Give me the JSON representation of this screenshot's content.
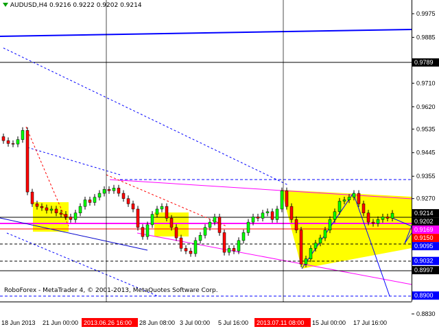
{
  "header": {
    "symbol": "AUDUSD,H4",
    "ohlc": "0.9216 0.9222 0.9202 0.9214"
  },
  "footer": {
    "copyright": "RoboForex - MetaTrader 4, © 2001-2013, MetaQuotes Software Corp."
  },
  "chart_data": {
    "type": "candlestick",
    "title": "AUDUSD,H4",
    "ylim": [
      0.883,
      0.9975
    ],
    "y_ticks": [
      "0.9975",
      "0.9885",
      "0.9710",
      "0.9620",
      "0.9535",
      "0.9445",
      "0.9355",
      "0.9270",
      "0.8830"
    ],
    "x_ticks": [
      "18 Jun 2013",
      "21 Jun 00:00",
      "28 Jun 08:00",
      "3 Jul 00:00",
      "5 Jul 16:00",
      "15 Jul 00:00",
      "17 Jul 16:00"
    ],
    "x_highlight_labels": [
      "2013.06.26 16:00",
      "2013.07.11 08:00"
    ],
    "price_labels": [
      {
        "value": "0.9789",
        "color": "#000000"
      },
      {
        "value": "0.9214",
        "color": "#000000"
      },
      {
        "value": "0.9202",
        "color": "#000000"
      },
      {
        "value": "0.9169",
        "color": "#ff00ff"
      },
      {
        "value": "0.9150",
        "color": "#ff0000"
      },
      {
        "value": "0.9095",
        "color": "#0000ff"
      },
      {
        "value": "0.9032",
        "color": "#0000ff"
      },
      {
        "value": "0.8997",
        "color": "#000000"
      },
      {
        "value": "0.8900",
        "color": "#0000ff"
      }
    ],
    "closes": [
      0.9491,
      0.948,
      0.9478,
      0.9495,
      0.953,
      0.9295,
      0.925,
      0.924,
      0.9235,
      0.9225,
      0.923,
      0.9215,
      0.921,
      0.92,
      0.919,
      0.9215,
      0.924,
      0.9265,
      0.9255,
      0.9275,
      0.929,
      0.9305,
      0.93,
      0.931,
      0.929,
      0.927,
      0.925,
      0.923,
      0.916,
      0.9125,
      0.917,
      0.921,
      0.923,
      0.924,
      0.9195,
      0.916,
      0.912,
      0.908,
      0.907,
      0.906,
      0.911,
      0.913,
      0.916,
      0.918,
      0.92,
      0.914,
      0.9065,
      0.908,
      0.907,
      0.911,
      0.914,
      0.918,
      0.92,
      0.9195,
      0.9215,
      0.922,
      0.919,
      0.923,
      0.93,
      0.924,
      0.919,
      0.915,
      0.902,
      0.904,
      0.908,
      0.91,
      0.912,
      0.915,
      0.919,
      0.922,
      0.926,
      0.9265,
      0.9275,
      0.929,
      0.925,
      0.9215,
      0.918,
      0.9175,
      0.919,
      0.92,
      0.9195,
      0.9214
    ],
    "colors": {
      "bull": "#00ff00",
      "bear": "#ff0000",
      "zone": "#ffff00",
      "level": "#0000ff",
      "channel": "#ff00ff"
    }
  }
}
